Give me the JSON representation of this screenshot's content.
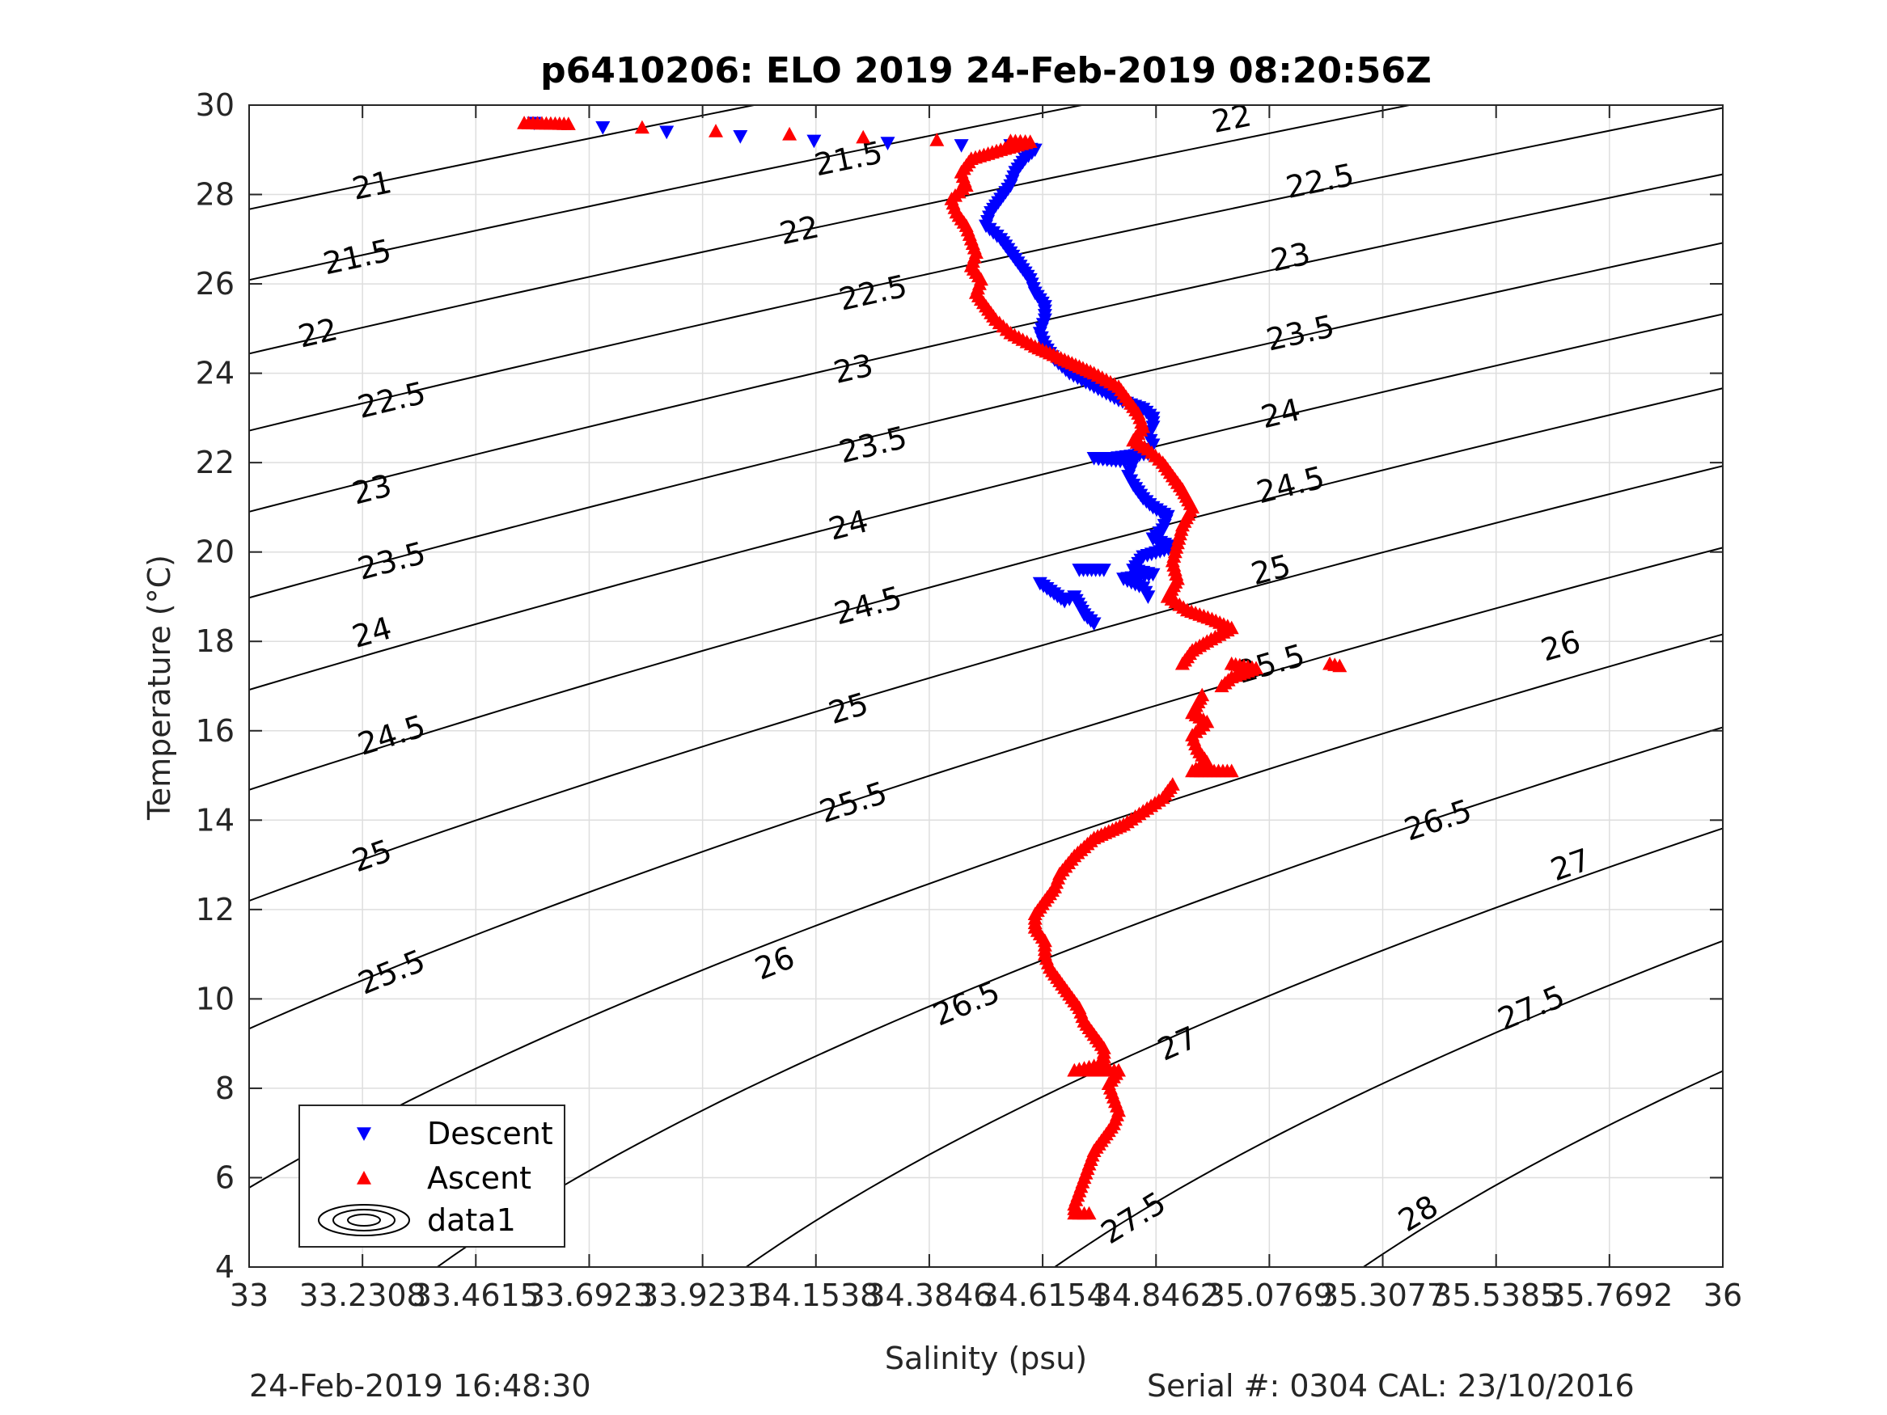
{
  "chart_data": {
    "type": "scatter",
    "title": "p6410206: ELO 2019 24-Feb-2019 08:20:56Z",
    "xlabel": "Salinity (psu)",
    "ylabel": "Temperature (°C)",
    "xlim": [
      33,
      36
    ],
    "ylim": [
      4,
      30
    ],
    "x_ticks": [
      33,
      33.2308,
      33.4615,
      33.6923,
      33.9231,
      34.1538,
      34.3846,
      34.6154,
      34.8462,
      35.0769,
      35.3077,
      35.5385,
      35.7692,
      36
    ],
    "x_tick_labels": [
      "33",
      "33.2308",
      "33.4615",
      "33.6923",
      "33.9231",
      "34.1538",
      "34.3846",
      "34.6154",
      "34.8462",
      "35.0769",
      "35.3077",
      "35.5385",
      "35.7692",
      "36"
    ],
    "y_ticks": [
      4,
      6,
      8,
      10,
      12,
      14,
      16,
      18,
      20,
      22,
      24,
      26,
      28,
      30
    ],
    "y_tick_labels": [
      "4",
      "6",
      "8",
      "10",
      "12",
      "14",
      "16",
      "18",
      "20",
      "22",
      "24",
      "26",
      "28",
      "30"
    ],
    "grid": true,
    "legend_position": "bottom-left",
    "series": [
      {
        "name": "Descent",
        "marker": "triangle-down",
        "color": "#0000ff",
        "points": [
          [
            33.58,
            29.6
          ],
          [
            33.72,
            29.5
          ],
          [
            33.85,
            29.4
          ],
          [
            34.0,
            29.3
          ],
          [
            34.15,
            29.2
          ],
          [
            34.3,
            29.15
          ],
          [
            34.45,
            29.1
          ],
          [
            34.55,
            29.1
          ],
          [
            34.6,
            29.0
          ],
          [
            34.58,
            28.8
          ],
          [
            34.56,
            28.5
          ],
          [
            34.55,
            28.2
          ],
          [
            34.53,
            27.9
          ],
          [
            34.51,
            27.6
          ],
          [
            34.5,
            27.3
          ],
          [
            34.53,
            27.0
          ],
          [
            34.55,
            26.7
          ],
          [
            34.57,
            26.4
          ],
          [
            34.59,
            26.1
          ],
          [
            34.6,
            25.8
          ],
          [
            34.62,
            25.5
          ],
          [
            34.62,
            25.2
          ],
          [
            34.61,
            24.9
          ],
          [
            34.62,
            24.6
          ],
          [
            34.64,
            24.3
          ],
          [
            34.67,
            24.0
          ],
          [
            34.72,
            23.7
          ],
          [
            34.77,
            23.4
          ],
          [
            34.82,
            23.2
          ],
          [
            34.84,
            23.0
          ],
          [
            34.84,
            22.8
          ],
          [
            34.83,
            22.6
          ],
          [
            34.84,
            22.4
          ],
          [
            34.83,
            22.2
          ],
          [
            34.76,
            22.1
          ],
          [
            34.72,
            22.1
          ],
          [
            34.8,
            22.0
          ],
          [
            34.79,
            21.7
          ],
          [
            34.8,
            21.5
          ],
          [
            34.82,
            21.2
          ],
          [
            34.84,
            21.0
          ],
          [
            34.87,
            20.8
          ],
          [
            34.86,
            20.5
          ],
          [
            34.84,
            20.3
          ],
          [
            34.88,
            20.1
          ],
          [
            34.82,
            19.9
          ],
          [
            34.8,
            19.6
          ],
          [
            34.84,
            19.5
          ],
          [
            34.78,
            19.4
          ],
          [
            34.82,
            19.2
          ],
          [
            34.83,
            19.0
          ],
          [
            34.61,
            19.3
          ],
          [
            34.66,
            18.9
          ],
          [
            34.68,
            19.0
          ],
          [
            34.7,
            18.6
          ],
          [
            34.72,
            18.4
          ],
          [
            34.74,
            19.6
          ],
          [
            34.69,
            19.6
          ]
        ]
      },
      {
        "name": "Ascent",
        "marker": "triangle-up",
        "color": "#ff0000",
        "points": [
          [
            33.56,
            29.6
          ],
          [
            33.65,
            29.58
          ],
          [
            33.8,
            29.5
          ],
          [
            33.95,
            29.42
          ],
          [
            34.1,
            29.35
          ],
          [
            34.25,
            29.28
          ],
          [
            34.4,
            29.22
          ],
          [
            34.55,
            29.2
          ],
          [
            34.59,
            29.18
          ],
          [
            34.53,
            29.0
          ],
          [
            34.47,
            28.8
          ],
          [
            34.45,
            28.5
          ],
          [
            34.46,
            28.2
          ],
          [
            34.43,
            27.9
          ],
          [
            34.44,
            27.6
          ],
          [
            34.46,
            27.3
          ],
          [
            34.47,
            27.0
          ],
          [
            34.48,
            26.7
          ],
          [
            34.47,
            26.4
          ],
          [
            34.49,
            26.1
          ],
          [
            34.48,
            25.8
          ],
          [
            34.5,
            25.5
          ],
          [
            34.52,
            25.2
          ],
          [
            34.55,
            24.9
          ],
          [
            34.6,
            24.6
          ],
          [
            34.66,
            24.3
          ],
          [
            34.72,
            24.0
          ],
          [
            34.77,
            23.7
          ],
          [
            34.79,
            23.4
          ],
          [
            34.81,
            23.1
          ],
          [
            34.82,
            22.8
          ],
          [
            34.8,
            22.5
          ],
          [
            34.83,
            22.3
          ],
          [
            34.86,
            22.0
          ],
          [
            34.88,
            21.7
          ],
          [
            34.9,
            21.4
          ],
          [
            34.92,
            21.0
          ],
          [
            34.9,
            20.6
          ],
          [
            34.89,
            20.2
          ],
          [
            34.88,
            19.8
          ],
          [
            34.89,
            19.4
          ],
          [
            34.87,
            19.0
          ],
          [
            34.91,
            18.7
          ],
          [
            34.96,
            18.5
          ],
          [
            35.0,
            18.3
          ],
          [
            34.95,
            18.0
          ],
          [
            34.92,
            17.8
          ],
          [
            34.9,
            17.5
          ],
          [
            35.0,
            17.5
          ],
          [
            35.05,
            17.4
          ],
          [
            35.0,
            17.2
          ],
          [
            34.98,
            17.0
          ],
          [
            35.2,
            17.5
          ],
          [
            35.22,
            17.45
          ],
          [
            34.94,
            16.8
          ],
          [
            34.92,
            16.4
          ],
          [
            34.95,
            16.2
          ],
          [
            34.92,
            15.9
          ],
          [
            34.93,
            15.6
          ],
          [
            34.95,
            15.3
          ],
          [
            34.92,
            15.1
          ],
          [
            35.0,
            15.1
          ],
          [
            34.88,
            14.8
          ],
          [
            34.86,
            14.5
          ],
          [
            34.82,
            14.2
          ],
          [
            34.78,
            13.9
          ],
          [
            34.72,
            13.6
          ],
          [
            34.68,
            13.2
          ],
          [
            34.65,
            12.8
          ],
          [
            34.64,
            12.5
          ],
          [
            34.62,
            12.2
          ],
          [
            34.6,
            11.9
          ],
          [
            34.6,
            11.6
          ],
          [
            34.62,
            11.3
          ],
          [
            34.62,
            11.0
          ],
          [
            34.63,
            10.7
          ],
          [
            34.65,
            10.4
          ],
          [
            34.67,
            10.1
          ],
          [
            34.69,
            9.8
          ],
          [
            34.7,
            9.5
          ],
          [
            34.72,
            9.2
          ],
          [
            34.74,
            8.9
          ],
          [
            34.74,
            8.6
          ],
          [
            34.72,
            8.5
          ],
          [
            34.68,
            8.4
          ],
          [
            34.77,
            8.4
          ],
          [
            34.75,
            8.1
          ],
          [
            34.76,
            7.8
          ],
          [
            34.77,
            7.5
          ],
          [
            34.76,
            7.2
          ],
          [
            34.74,
            6.9
          ],
          [
            34.72,
            6.6
          ],
          [
            34.71,
            6.3
          ],
          [
            34.7,
            6.0
          ],
          [
            34.69,
            5.7
          ],
          [
            34.68,
            5.4
          ],
          [
            34.68,
            5.2
          ],
          [
            34.71,
            5.2
          ]
        ]
      }
    ],
    "legend": [
      {
        "label": "Descent",
        "symbol": "triangle-down",
        "color": "#0000ff"
      },
      {
        "label": "Ascent",
        "symbol": "triangle-up",
        "color": "#ff0000"
      },
      {
        "label": "data1",
        "symbol": "contour",
        "color": "#000000"
      }
    ],
    "contours": {
      "name": "data1",
      "levels": [
        21,
        21.5,
        22,
        22.5,
        23,
        23.5,
        24,
        24.5,
        25,
        25.5,
        26,
        26.5,
        27,
        27.5,
        28
      ],
      "line_labels": [
        {
          "text": "21",
          "x": 33.25,
          "y": 28.2
        },
        {
          "text": "21.5",
          "x": 34.22,
          "y": 28.8
        },
        {
          "text": "22",
          "x": 35.0,
          "y": 29.7
        },
        {
          "text": "21.5",
          "x": 33.22,
          "y": 26.6
        },
        {
          "text": "22",
          "x": 34.12,
          "y": 27.2
        },
        {
          "text": "22.5",
          "x": 35.18,
          "y": 28.3
        },
        {
          "text": "22",
          "x": 33.14,
          "y": 24.9
        },
        {
          "text": "22.5",
          "x": 34.27,
          "y": 25.8
        },
        {
          "text": "23",
          "x": 35.12,
          "y": 26.6
        },
        {
          "text": "22.5",
          "x": 33.29,
          "y": 23.4
        },
        {
          "text": "23",
          "x": 34.23,
          "y": 24.1
        },
        {
          "text": "23.5",
          "x": 35.14,
          "y": 24.9
        },
        {
          "text": "23",
          "x": 33.25,
          "y": 21.4
        },
        {
          "text": "23.5",
          "x": 34.27,
          "y": 22.4
        },
        {
          "text": "24",
          "x": 35.1,
          "y": 23.1
        },
        {
          "text": "23.5",
          "x": 33.29,
          "y": 19.8
        },
        {
          "text": "24",
          "x": 34.22,
          "y": 20.6
        },
        {
          "text": "24.5",
          "x": 35.12,
          "y": 21.5
        },
        {
          "text": "24",
          "x": 33.25,
          "y": 18.2
        },
        {
          "text": "24.5",
          "x": 34.26,
          "y": 18.8
        },
        {
          "text": "25",
          "x": 35.08,
          "y": 19.6
        },
        {
          "text": "24.5",
          "x": 33.29,
          "y": 15.9
        },
        {
          "text": "25",
          "x": 34.22,
          "y": 16.5
        },
        {
          "text": "25.5",
          "x": 35.08,
          "y": 17.5
        },
        {
          "text": "25",
          "x": 33.25,
          "y": 13.2
        },
        {
          "text": "25.5",
          "x": 34.23,
          "y": 14.4
        },
        {
          "text": "26",
          "x": 35.67,
          "y": 17.9
        },
        {
          "text": "26",
          "x": 34.07,
          "y": 10.8
        },
        {
          "text": "26.5",
          "x": 35.42,
          "y": 14.0
        },
        {
          "text": "25.5",
          "x": 33.29,
          "y": 10.6
        },
        {
          "text": "26.5",
          "x": 34.46,
          "y": 9.9
        },
        {
          "text": "27",
          "x": 35.69,
          "y": 13.0
        },
        {
          "text": "27",
          "x": 34.89,
          "y": 9.0
        },
        {
          "text": "27.5",
          "x": 35.61,
          "y": 9.8
        },
        {
          "text": "26.5",
          "x": 33.38,
          "y": 5.6
        },
        {
          "text": "27.5",
          "x": 34.8,
          "y": 5.1
        },
        {
          "text": "28",
          "x": 35.38,
          "y": 5.2
        }
      ]
    }
  },
  "footer": {
    "left": "24-Feb-2019 16:48:30",
    "right": "Serial #: 0304  CAL: 23/10/2016"
  }
}
